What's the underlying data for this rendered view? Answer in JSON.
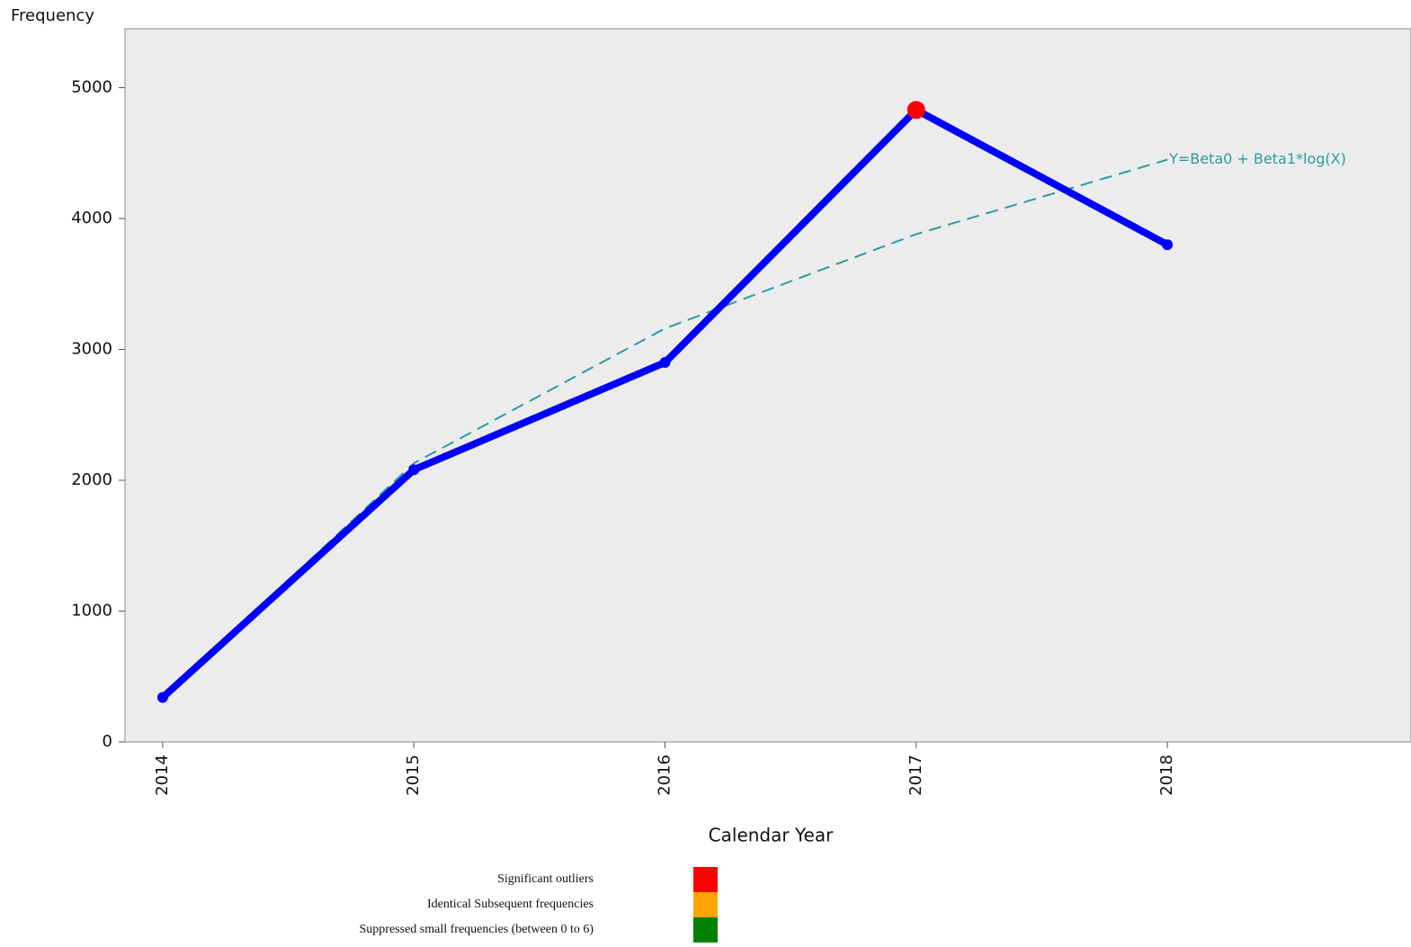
{
  "chart_data": {
    "type": "line",
    "y_label": "Frequency",
    "x_label": "Calendar Year",
    "x": [
      2014,
      2015,
      2016,
      2017,
      2018
    ],
    "xlim": [
      2013.85,
      2018.97
    ],
    "xticks": [
      2014,
      2015,
      2016,
      2017,
      2018
    ],
    "ylim": [
      0,
      5450
    ],
    "yticks": [
      0,
      1000,
      2000,
      3000,
      4000,
      5000
    ],
    "series": [
      {
        "color": "#0000ff",
        "values": [
          340,
          2080,
          2900,
          4830,
          3800
        ],
        "point_colors": [
          "#0000ff",
          "#0000ff",
          "#0000ff",
          "#ff0000",
          "#0000ff"
        ]
      },
      {
        "color": "#2a9d9d",
        "dashed": true,
        "values": [
          340,
          2130,
          3160,
          3880,
          4450
        ],
        "label": "Y=Beta0 + Beta1*log(X)"
      }
    ],
    "legend": [
      {
        "label": "Significant outliers",
        "color": "#ff0000"
      },
      {
        "label": "Identical Subsequent frequencies",
        "color": "#ffa500"
      },
      {
        "label": "Suppressed small frequencies (between 0 to 6)",
        "color": "#008000"
      }
    ]
  }
}
